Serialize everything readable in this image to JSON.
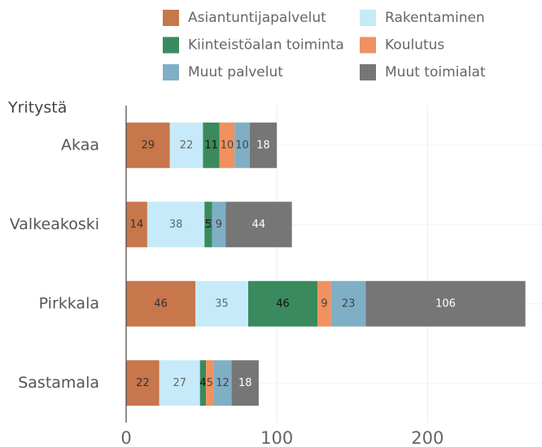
{
  "chart_data": {
    "type": "stacked-bar-horizontal",
    "y_axis_label": "Yritystä",
    "categories": [
      "Akaa",
      "Valkeakoski",
      "Pirkkala",
      "Sastamala"
    ],
    "series": [
      {
        "name": "Asiantuntijapalvelut",
        "color": "#c8764b",
        "values": [
          29,
          14,
          46,
          22
        ]
      },
      {
        "name": "Rakentaminen",
        "color": "#c6eaf9",
        "values": [
          22,
          38,
          35,
          27
        ]
      },
      {
        "name": "Kiinteistöalan toiminta",
        "color": "#3a8a5e",
        "values": [
          11,
          5,
          46,
          4
        ]
      },
      {
        "name": "Koulutus",
        "color": "#f0915f",
        "values": [
          10,
          0,
          9,
          5
        ]
      },
      {
        "name": "Muut palvelut",
        "color": "#7fafc4",
        "values": [
          10,
          9,
          23,
          12
        ]
      },
      {
        "name": "Muut toimialat",
        "color": "#767676",
        "values": [
          18,
          44,
          106,
          18
        ]
      }
    ],
    "xlim": [
      0,
      276
    ],
    "xticks": [
      0,
      100,
      200
    ],
    "grid": true
  }
}
